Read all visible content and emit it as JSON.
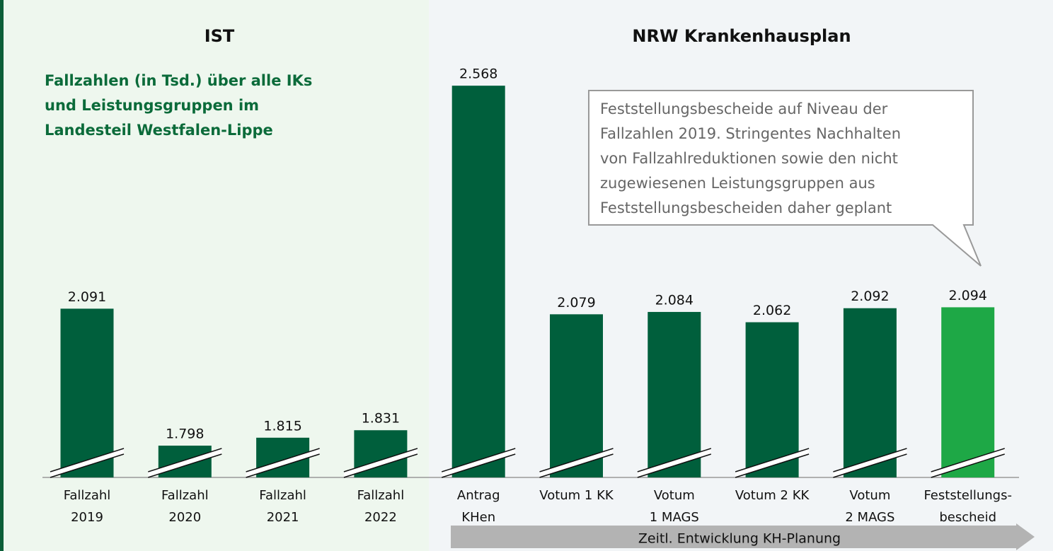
{
  "chart_data": {
    "type": "bar",
    "panels": [
      "IST",
      "NRW Krankenhausplan"
    ],
    "subtitle": [
      "Fallzahlen (in Tsd.) über alle IKs",
      "und Leistungsgruppen im",
      "Landesteil Westfalen-Lippe"
    ],
    "annotation": [
      "Feststellungsbescheide auf Niveau der",
      "Fallzahlen 2019. Stringentes Nachhalten",
      "von Fallzahlreduktionen sowie den nicht",
      "zugewiesenen Leistungsgruppen aus",
      "Feststellungsbescheiden daher geplant"
    ],
    "arrow_label": "Zeitl. Entwicklung KH-Planung",
    "categories": [
      [
        "Fallzahl",
        "2019"
      ],
      [
        "Fallzahl",
        "2020"
      ],
      [
        "Fallzahl",
        "2021"
      ],
      [
        "Fallzahl",
        "2022"
      ],
      [
        "Antrag",
        "KHen"
      ],
      [
        "Votum 1 KK"
      ],
      [
        "Votum",
        "1 MAGS"
      ],
      [
        "Votum 2 KK"
      ],
      [
        "Votum",
        "2 MAGS"
      ],
      [
        "Feststellungs-",
        "bescheid"
      ]
    ],
    "values": [
      2091,
      1798,
      1815,
      1831,
      2568,
      2079,
      2084,
      2062,
      2092,
      2094
    ],
    "value_labels": [
      "2.091",
      "1.798",
      "1.815",
      "1.831",
      "2.568",
      "2.079",
      "2.084",
      "2.062",
      "2.092",
      "2.094"
    ],
    "colors": [
      "#005f3c",
      "#005f3c",
      "#005f3c",
      "#005f3c",
      "#005f3c",
      "#005f3c",
      "#005f3c",
      "#005f3c",
      "#005f3c",
      "#1ea846"
    ],
    "ylim": [
      1730,
      2600
    ]
  }
}
